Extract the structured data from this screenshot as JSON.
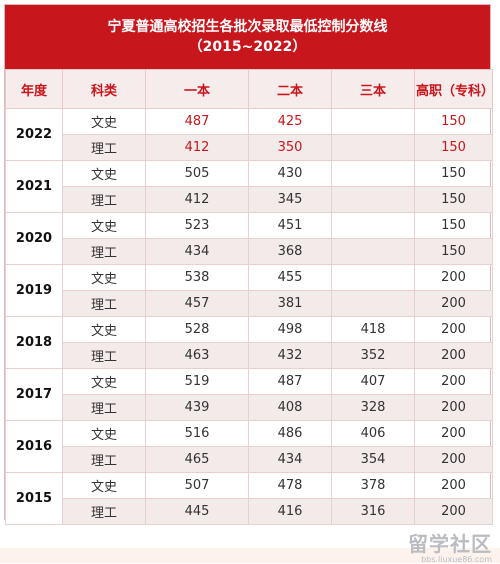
{
  "title_line1": "宁夏普通高校招生各批次录取最低控制分数线",
  "title_line2": "（2015~2022）",
  "headers": [
    "年度",
    "科类",
    "一本",
    "二本",
    "三本",
    "高职（专科）"
  ],
  "groups": [
    {
      "year": "2022",
      "rows": [
        {
          "type": "文史",
          "b1": "487",
          "b2": "425",
          "b3": "",
          "gz": "150"
        },
        {
          "type": "理工",
          "b1": "412",
          "b2": "350",
          "b3": "",
          "gz": "150"
        }
      ]
    },
    {
      "year": "2021",
      "rows": [
        {
          "type": "文史",
          "b1": "505",
          "b2": "430",
          "b3": "",
          "gz": "150"
        },
        {
          "type": "理工",
          "b1": "412",
          "b2": "345",
          "b3": "",
          "gz": "150"
        }
      ]
    },
    {
      "year": "2020",
      "rows": [
        {
          "type": "文史",
          "b1": "523",
          "b2": "451",
          "b3": "",
          "gz": "150"
        },
        {
          "type": "理工",
          "b1": "434",
          "b2": "368",
          "b3": "",
          "gz": "150"
        }
      ]
    },
    {
      "year": "2019",
      "rows": [
        {
          "type": "文史",
          "b1": "538",
          "b2": "455",
          "b3": "",
          "gz": "200"
        },
        {
          "type": "理工",
          "b1": "457",
          "b2": "381",
          "b3": "",
          "gz": "200"
        }
      ]
    },
    {
      "year": "2018",
      "rows": [
        {
          "type": "文史",
          "b1": "528",
          "b2": "498",
          "b3": "418",
          "gz": "200"
        },
        {
          "type": "理工",
          "b1": "463",
          "b2": "432",
          "b3": "352",
          "gz": "200"
        }
      ]
    },
    {
      "year": "2017",
      "rows": [
        {
          "type": "文史",
          "b1": "519",
          "b2": "487",
          "b3": "407",
          "gz": "200"
        },
        {
          "type": "理工",
          "b1": "439",
          "b2": "408",
          "b3": "328",
          "gz": "200"
        }
      ]
    },
    {
      "year": "2016",
      "rows": [
        {
          "type": "文史",
          "b1": "516",
          "b2": "486",
          "b3": "406",
          "gz": "200"
        },
        {
          "type": "理工",
          "b1": "465",
          "b2": "434",
          "b3": "354",
          "gz": "200"
        }
      ]
    },
    {
      "year": "2015",
      "rows": [
        {
          "type": "文史",
          "b1": "507",
          "b2": "478",
          "b3": "378",
          "gz": "200"
        },
        {
          "type": "理工",
          "b1": "445",
          "b2": "416",
          "b3": "316",
          "gz": "200"
        }
      ]
    }
  ],
  "watermark": {
    "logo": "留学社区",
    "url": "bbs.liuxue86.com"
  },
  "colors": {
    "accent": "#c8161d",
    "header_bg": "#f7ecec",
    "alt_row": "#f3eaea"
  }
}
